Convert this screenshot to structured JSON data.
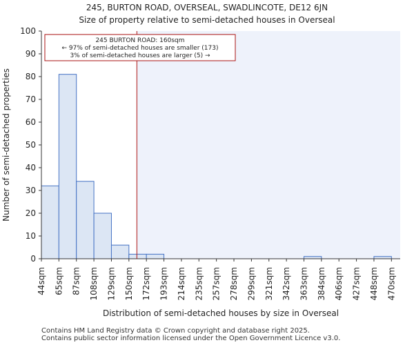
{
  "chart_data": {
    "type": "bar",
    "title_line1": "245, BURTON ROAD, OVERSEAL, SWADLINCOTE, DE12 6JN",
    "title_line2": "Size of property relative to semi-detached houses in Overseal",
    "xlabel": "Distribution of semi-detached houses by size in Overseal",
    "ylabel": "Number of semi-detached properties",
    "ylim": [
      0,
      100
    ],
    "yticks": [
      0,
      10,
      20,
      30,
      40,
      50,
      60,
      70,
      80,
      90,
      100
    ],
    "categories": [
      "44sqm",
      "65sqm",
      "87sqm",
      "108sqm",
      "129sqm",
      "150sqm",
      "172sqm",
      "193sqm",
      "214sqm",
      "235sqm",
      "257sqm",
      "278sqm",
      "299sqm",
      "321sqm",
      "342sqm",
      "363sqm",
      "384sqm",
      "406sqm",
      "427sqm",
      "448sqm",
      "470sqm"
    ],
    "values": [
      32,
      81,
      34,
      20,
      6,
      2,
      2,
      0,
      0,
      0,
      0,
      0,
      0,
      0,
      0,
      1,
      0,
      0,
      0,
      1,
      0
    ],
    "marker": {
      "value_sqm": 160,
      "color": "#aa1111"
    },
    "annotation": {
      "line1": "245 BURTON ROAD: 160sqm",
      "line2": "← 97% of semi-detached houses are smaller (173)",
      "line3": "3% of semi-detached houses are larger (5) →"
    },
    "colors": {
      "bar_fill": "#dce6f4",
      "bar_edge": "#4472c4",
      "shade": "#eef2fb"
    }
  },
  "footer": {
    "line1": "Contains HM Land Registry data © Crown copyright and database right 2025.",
    "line2": "Contains public sector information licensed under the Open Government Licence v3.0."
  }
}
